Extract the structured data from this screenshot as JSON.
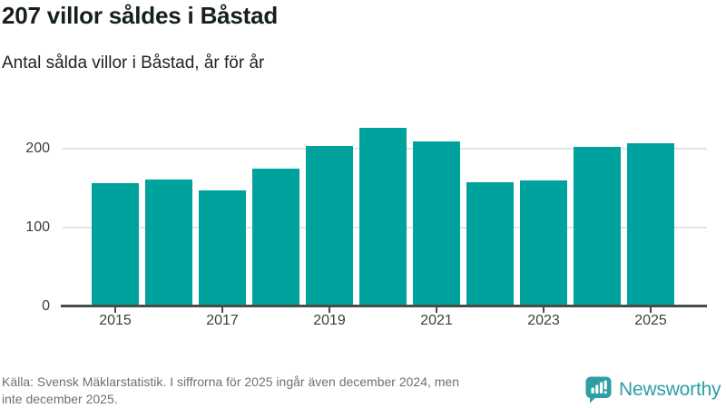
{
  "header": {
    "title": "207 villor såldes i Båstad",
    "subtitle": "Antal sålda villor i Båstad, år för år"
  },
  "chart_data": {
    "type": "bar",
    "title": "207 villor såldes i Båstad",
    "subtitle": "Antal sålda villor i Båstad, år för år",
    "categories": [
      2015,
      2016,
      2017,
      2018,
      2019,
      2020,
      2021,
      2022,
      2023,
      2024,
      2025
    ],
    "values": [
      156,
      161,
      147,
      175,
      203,
      226,
      209,
      158,
      160,
      202,
      207
    ],
    "xlabel": "",
    "ylabel": "",
    "ylim": [
      0,
      240
    ],
    "yticks": [
      0,
      100,
      200
    ],
    "xtick_labels": [
      "2015",
      "2017",
      "2019",
      "2021",
      "2023",
      "2025"
    ],
    "grid": "horizontal-only",
    "legend": "none",
    "bar_color": "#00a29d"
  },
  "footer": {
    "source_line1": "Källa: Svensk Mäklarstatistik. I siffrorna för 2025 ingår även december 2024, men",
    "source_line2": "inte december 2025.",
    "logo_text": "Newsworthy",
    "logo_icon": "bar-chart-speech-bubble-icon"
  },
  "colors": {
    "bar": "#00a29d",
    "logo": "#2d9fa3",
    "axis_text": "#3b403e",
    "gridline": "#e5e5e5",
    "source_text": "#6d7170"
  }
}
